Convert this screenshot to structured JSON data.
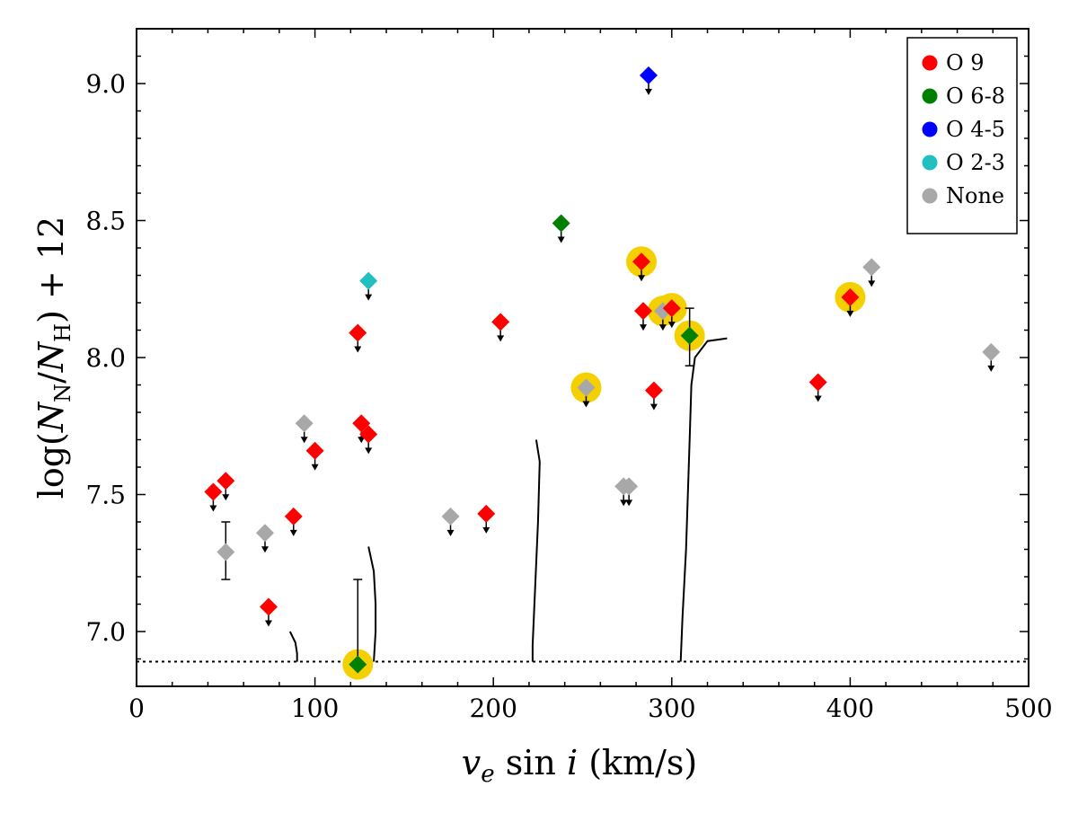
{
  "chart_data": {
    "type": "scatter",
    "title": "",
    "xlabel": {
      "main": "v",
      "sub": "e",
      "rest": " sin ",
      "italic_i": "i",
      "unit": " (km/s)"
    },
    "ylabel": {
      "pre": "log(",
      "N1": "N",
      "sub1": "N",
      "slash": "/",
      "N2": "N",
      "sub2": "H",
      "post": ") + 12"
    },
    "xlim": [
      0,
      500
    ],
    "ylim": [
      6.8,
      9.2
    ],
    "xticks": [
      0,
      100,
      200,
      300,
      400,
      500
    ],
    "yticks": [
      7.0,
      7.5,
      8.0,
      8.5,
      9.0
    ],
    "xtick_labels": [
      "0",
      "100",
      "200",
      "300",
      "400",
      "500"
    ],
    "ytick_labels": [
      "7.0",
      "7.5",
      "8.0",
      "8.5",
      "9.0"
    ],
    "grid": false,
    "legend_position": "top-right",
    "colors": {
      "O 9": "#ff0000",
      "O 6-8": "#008000",
      "O 4-5": "#0000ff",
      "O 2-3": "#20c0c0",
      "None": "#a8a8a8",
      "highlight": "#f5d000"
    },
    "legend": [
      "O 9",
      "O 6-8",
      "O 4-5",
      "O 2-3",
      "None"
    ],
    "threshold_y": 6.89,
    "points": [
      {
        "x": 43,
        "y": 7.51,
        "class": "O 9",
        "upper": true,
        "hl": false
      },
      {
        "x": 50,
        "y": 7.55,
        "class": "O 9",
        "upper": true,
        "hl": false
      },
      {
        "x": 50,
        "y": 7.29,
        "class": "None",
        "upper": false,
        "hl": false,
        "err": [
          7.19,
          7.4
        ]
      },
      {
        "x": 72,
        "y": 7.36,
        "class": "None",
        "upper": true,
        "hl": false
      },
      {
        "x": 74,
        "y": 7.09,
        "class": "O 9",
        "upper": true,
        "hl": false
      },
      {
        "x": 88,
        "y": 7.42,
        "class": "O 9",
        "upper": true,
        "hl": false
      },
      {
        "x": 94,
        "y": 7.76,
        "class": "None",
        "upper": true,
        "hl": false
      },
      {
        "x": 100,
        "y": 7.66,
        "class": "O 9",
        "upper": true,
        "hl": false
      },
      {
        "x": 124,
        "y": 8.09,
        "class": "O 9",
        "upper": true,
        "hl": false
      },
      {
        "x": 126,
        "y": 7.76,
        "class": "O 9",
        "upper": true,
        "hl": false
      },
      {
        "x": 130,
        "y": 7.72,
        "class": "O 9",
        "upper": true,
        "hl": false
      },
      {
        "x": 124,
        "y": 6.88,
        "class": "O 6-8",
        "upper": false,
        "hl": true,
        "err": [
          6.88,
          7.19
        ]
      },
      {
        "x": 130,
        "y": 8.28,
        "class": "O 2-3",
        "upper": true,
        "hl": false
      },
      {
        "x": 176,
        "y": 7.42,
        "class": "None",
        "upper": true,
        "hl": false
      },
      {
        "x": 196,
        "y": 7.43,
        "class": "O 9",
        "upper": true,
        "hl": false
      },
      {
        "x": 204,
        "y": 8.13,
        "class": "O 9",
        "upper": true,
        "hl": false
      },
      {
        "x": 238,
        "y": 8.49,
        "class": "O 6-8",
        "upper": true,
        "hl": false
      },
      {
        "x": 252,
        "y": 7.89,
        "class": "None",
        "upper": true,
        "hl": true
      },
      {
        "x": 273,
        "y": 7.53,
        "class": "None",
        "upper": true,
        "hl": false
      },
      {
        "x": 276,
        "y": 7.53,
        "class": "None",
        "upper": true,
        "hl": false
      },
      {
        "x": 283,
        "y": 8.35,
        "class": "O 9",
        "upper": true,
        "hl": true
      },
      {
        "x": 284,
        "y": 8.17,
        "class": "O 9",
        "upper": true,
        "hl": false
      },
      {
        "x": 287,
        "y": 9.03,
        "class": "O 4-5",
        "upper": true,
        "hl": false
      },
      {
        "x": 290,
        "y": 7.88,
        "class": "O 9",
        "upper": true,
        "hl": false
      },
      {
        "x": 295,
        "y": 8.17,
        "class": "None",
        "upper": true,
        "hl": true
      },
      {
        "x": 300,
        "y": 8.18,
        "class": "O 9",
        "upper": true,
        "hl": true
      },
      {
        "x": 310,
        "y": 8.08,
        "class": "O 6-8",
        "upper": false,
        "hl": true,
        "err": [
          7.97,
          8.18
        ]
      },
      {
        "x": 382,
        "y": 7.91,
        "class": "O 9",
        "upper": true,
        "hl": false
      },
      {
        "x": 400,
        "y": 8.22,
        "class": "O 9",
        "upper": true,
        "hl": true
      },
      {
        "x": 412,
        "y": 8.33,
        "class": "None",
        "upper": true,
        "hl": false
      },
      {
        "x": 479,
        "y": 8.02,
        "class": "None",
        "upper": true,
        "hl": false
      }
    ],
    "curves": [
      [
        [
          86,
          7.0
        ],
        [
          89,
          6.96
        ],
        [
          90,
          6.92
        ],
        [
          90,
          6.89
        ]
      ],
      [
        [
          130,
          7.31
        ],
        [
          133,
          7.22
        ],
        [
          134,
          7.1
        ],
        [
          134,
          7.0
        ],
        [
          133,
          6.89
        ]
      ],
      [
        [
          224,
          7.7
        ],
        [
          226,
          7.62
        ],
        [
          225,
          7.4
        ],
        [
          223,
          7.1
        ],
        [
          222,
          6.95
        ],
        [
          222,
          6.89
        ]
      ],
      [
        [
          331,
          8.07
        ],
        [
          320,
          8.06
        ],
        [
          313,
          8.0
        ],
        [
          311,
          7.9
        ],
        [
          310,
          7.7
        ],
        [
          309,
          7.5
        ],
        [
          308,
          7.3
        ],
        [
          306,
          7.05
        ],
        [
          305,
          6.89
        ]
      ]
    ]
  }
}
